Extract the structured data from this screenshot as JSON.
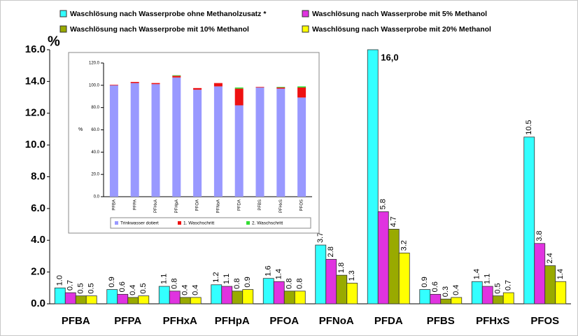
{
  "chart_data": [
    {
      "type": "bar",
      "y_label": "%",
      "categories": [
        "PFBA",
        "PFPA",
        "PFHxA",
        "PFHpA",
        "PFOA",
        "PFNoA",
        "PFDA",
        "PFBS",
        "PFHxS",
        "PFOS"
      ],
      "series": [
        {
          "name": "Waschlösung nach Wasserprobe ohne Methanolzusatz *",
          "color": "#33ffff",
          "values": [
            1.0,
            0.9,
            1.1,
            1.2,
            1.6,
            3.7,
            16.0,
            0.9,
            1.4,
            10.5
          ],
          "value_labels": [
            "1.0",
            "0.9",
            "1.1",
            "1.2",
            "1.6",
            "3.7",
            "16,0",
            "0.9",
            "1.4",
            "10.5"
          ]
        },
        {
          "name": "Waschlösung nach Wasserprobe mit 5% Methanol",
          "color": "#e033e0",
          "values": [
            0.7,
            0.6,
            0.8,
            1.1,
            1.4,
            2.8,
            5.8,
            0.6,
            1.1,
            3.8
          ],
          "value_labels": [
            "0.7",
            "0.6",
            "0.8",
            "1.1",
            "1.4",
            "2.8",
            "5.8",
            "0.6",
            "1.1",
            "3.8"
          ]
        },
        {
          "name": "Waschlösung nach Wasserprobe mit 10% Methanol",
          "color": "#99aa00",
          "values": [
            0.5,
            0.4,
            0.4,
            0.8,
            0.8,
            1.8,
            4.7,
            0.3,
            0.5,
            2.4
          ],
          "value_labels": [
            "0.5",
            "0.4",
            "0.4",
            "0.8",
            "0.8",
            "1.8",
            "4.7",
            "0.3",
            "0.5",
            "2.4"
          ]
        },
        {
          "name": "Waschlösung nach Wasserprobe mit 20% Methanol",
          "color": "#ffff00",
          "values": [
            0.5,
            0.5,
            0.4,
            0.9,
            0.8,
            1.3,
            3.2,
            0.4,
            0.7,
            1.4
          ],
          "value_labels": [
            "0.5",
            "0.5",
            "0.4",
            "0.9",
            "0.8",
            "1.3",
            "3.2",
            "0.4",
            "0.7",
            "1.4"
          ]
        }
      ],
      "ylim": [
        0,
        16
      ],
      "yticks": [
        {
          "value": 0,
          "label": "0.0"
        },
        {
          "value": 2,
          "label": "2.0"
        },
        {
          "value": 4,
          "label": "4.0"
        },
        {
          "value": 6,
          "label": "6.0"
        },
        {
          "value": 8,
          "label": "8.0"
        },
        {
          "value": 10,
          "label": "10.0"
        },
        {
          "value": 12,
          "label": "12.0"
        },
        {
          "value": 14,
          "label": "14.0"
        },
        {
          "value": 16,
          "label": "16.0"
        }
      ]
    },
    {
      "type": "stacked-bar",
      "y_label": "%",
      "categories": [
        "PFBA",
        "PFPA",
        "PFHxA",
        "PFHpA",
        "PFOA",
        "PFNoA",
        "PFDA",
        "PFBS",
        "PFHxS",
        "PFOS"
      ],
      "series": [
        {
          "name": "Trinkwasser dotiert",
          "color": "#9999ff",
          "values": [
            100,
            102,
            101,
            107,
            96,
            99,
            82,
            98,
            97,
            89
          ]
        },
        {
          "name": "1. Waschschritt",
          "color": "#ee1111",
          "values": [
            0.5,
            1,
            1,
            1.5,
            1.5,
            3,
            15,
            0.5,
            1,
            9
          ]
        },
        {
          "name": "2. Waschschritt",
          "color": "#33dd33",
          "values": [
            0,
            0,
            0,
            0.5,
            0,
            0,
            1,
            0,
            0.5,
            1
          ]
        }
      ],
      "ylim": [
        0,
        120
      ],
      "yticks": [
        {
          "value": 0,
          "label": "0.0"
        },
        {
          "value": 20,
          "label": "20.0"
        },
        {
          "value": 40,
          "label": "40.0"
        },
        {
          "value": 60,
          "label": "60.0"
        },
        {
          "value": 80,
          "label": "80.0"
        },
        {
          "value": 100,
          "label": "100.0"
        },
        {
          "value": 120,
          "label": "120.0"
        }
      ]
    }
  ]
}
